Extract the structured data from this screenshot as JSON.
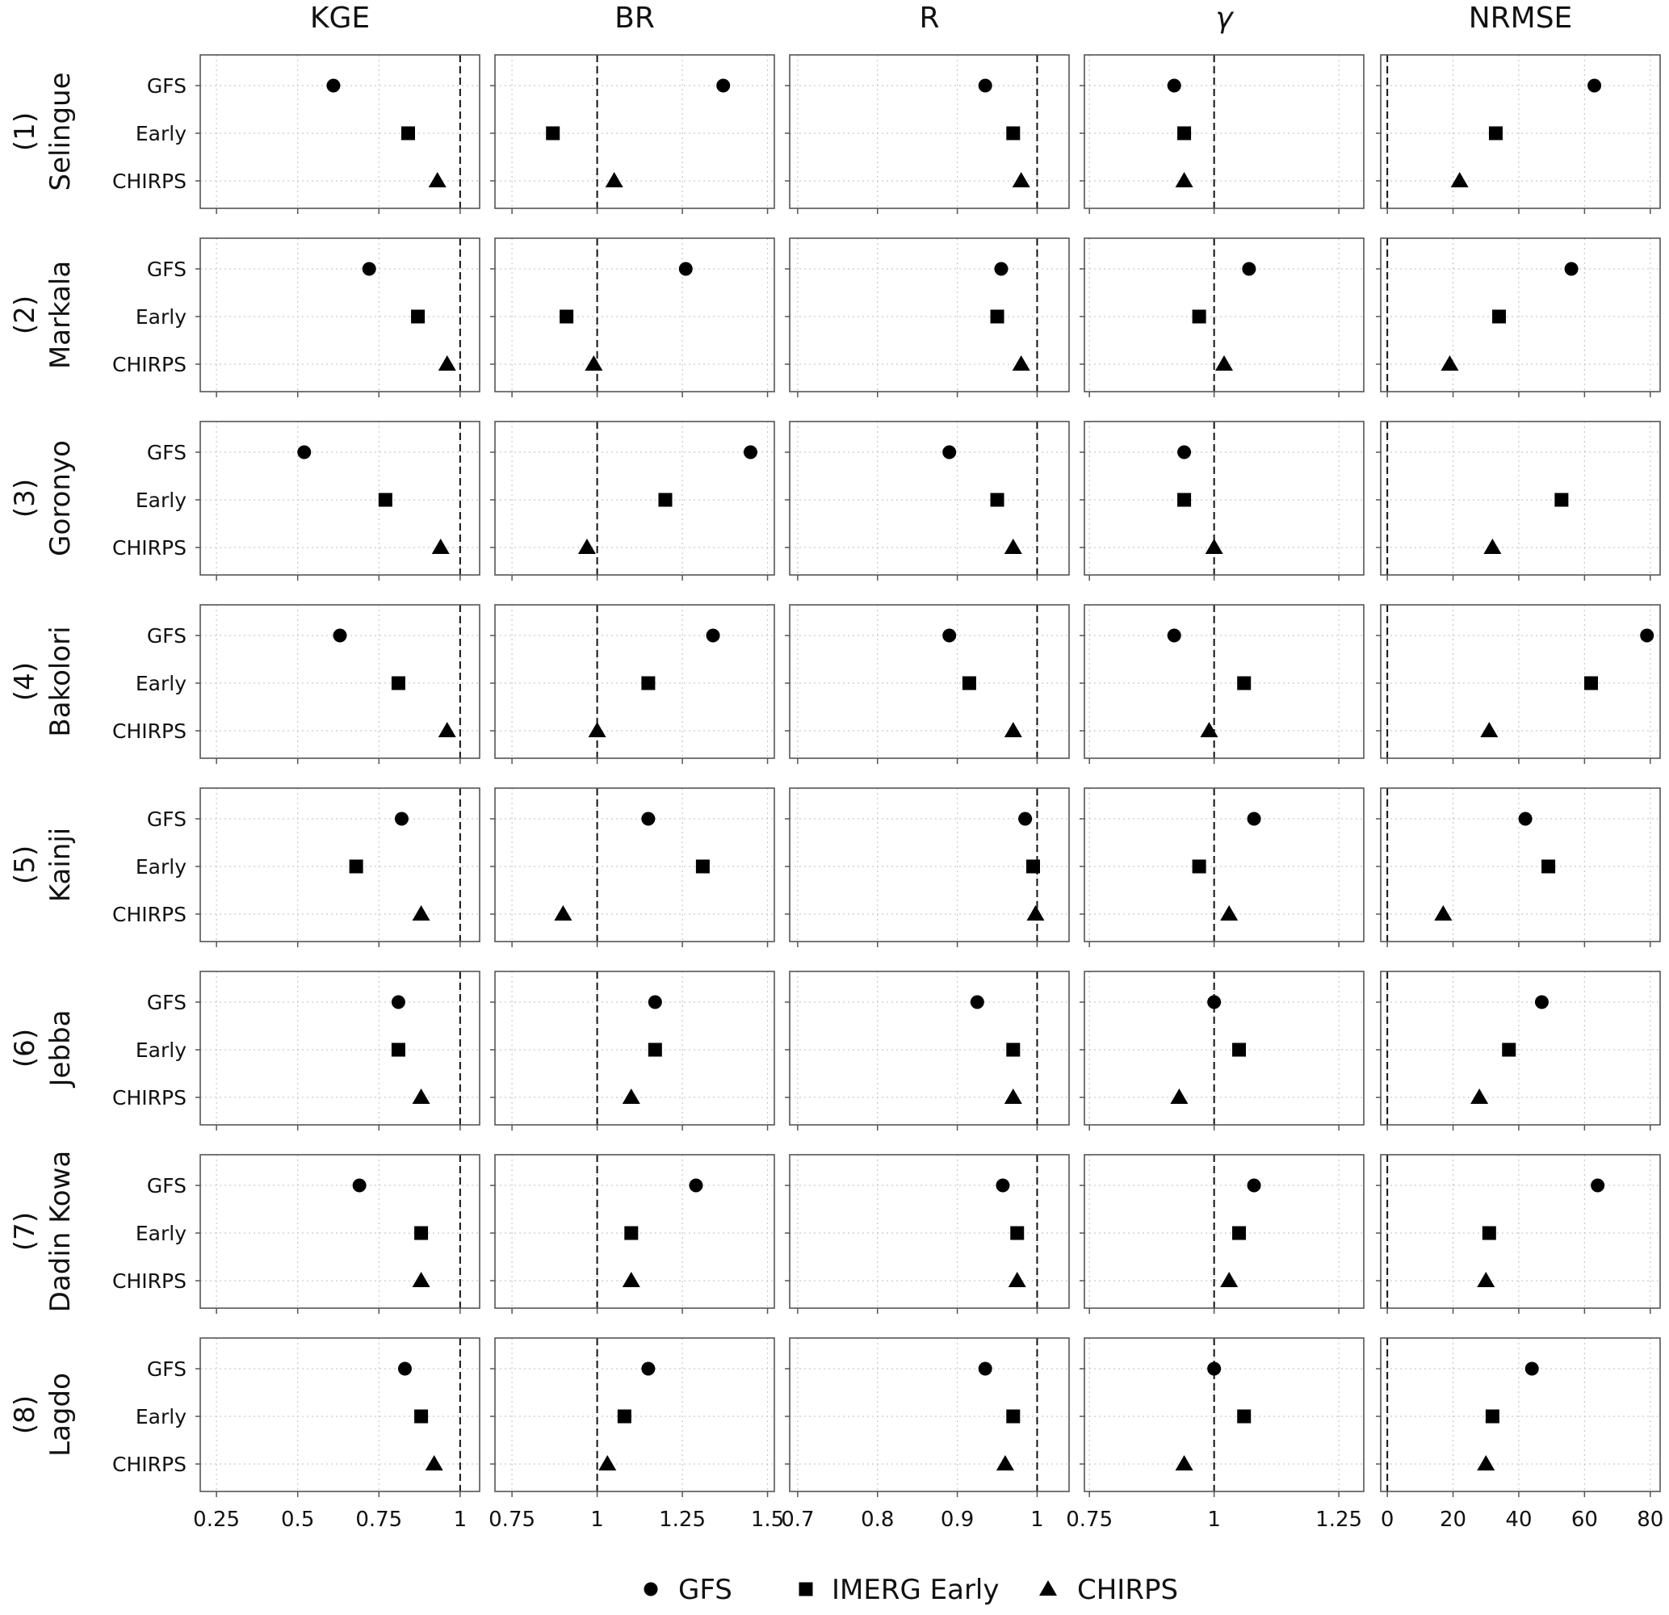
{
  "chart_data": {
    "type": "scatter",
    "categories": [
      "GFS",
      "Early",
      "CHIRPS"
    ],
    "series": [
      {
        "name": "GFS",
        "marker": "circle"
      },
      {
        "name": "IMERG Early",
        "marker": "square"
      },
      {
        "name": "CHIRPS",
        "marker": "triangle"
      }
    ],
    "metrics": [
      {
        "label": "KGE",
        "italic": false,
        "xlim": [
          0.2,
          1.06
        ],
        "ticks": [
          0.25,
          0.5,
          0.75,
          1
        ],
        "tick_labels": [
          "0.25",
          "0.5",
          "0.75",
          "1"
        ],
        "reference": 1
      },
      {
        "label": "BR",
        "italic": false,
        "xlim": [
          0.7,
          1.52
        ],
        "ticks": [
          0.75,
          1,
          1.25,
          1.5
        ],
        "tick_labels": [
          "0.75",
          "1",
          "1.25",
          "1.5"
        ],
        "reference": 1
      },
      {
        "label": "R",
        "italic": false,
        "xlim": [
          0.69,
          1.04
        ],
        "ticks": [
          0.7,
          0.8,
          0.9,
          1
        ],
        "tick_labels": [
          "0.7",
          "0.8",
          "0.9",
          "1"
        ],
        "reference": 1
      },
      {
        "label": "γ",
        "italic": true,
        "xlim": [
          0.74,
          1.3
        ],
        "ticks": [
          0.75,
          1,
          1.25
        ],
        "tick_labels": [
          "0.75",
          "1",
          "1.25"
        ],
        "reference": 1
      },
      {
        "label": "NRMSE",
        "italic": false,
        "xlim": [
          -2,
          83
        ],
        "ticks": [
          0,
          20,
          40,
          60,
          80
        ],
        "tick_labels": [
          "0",
          "20",
          "40",
          "60",
          "80"
        ],
        "reference": 0
      }
    ],
    "reservoirs": [
      {
        "index": "(1)",
        "name": "Selingue",
        "values": [
          [
            0.61,
            0.84,
            0.93
          ],
          [
            1.37,
            0.87,
            1.05
          ],
          [
            0.935,
            0.97,
            0.98
          ],
          [
            0.92,
            0.94,
            0.94
          ],
          [
            63,
            33,
            22
          ]
        ]
      },
      {
        "index": "(2)",
        "name": "Markala",
        "values": [
          [
            0.72,
            0.87,
            0.96
          ],
          [
            1.26,
            0.91,
            0.99
          ],
          [
            0.955,
            0.95,
            0.98
          ],
          [
            1.07,
            0.97,
            1.02
          ],
          [
            56,
            34,
            19
          ]
        ]
      },
      {
        "index": "(3)",
        "name": "Goronyo",
        "values": [
          [
            0.52,
            0.77,
            0.94
          ],
          [
            1.45,
            1.2,
            0.97
          ],
          [
            0.89,
            0.95,
            0.97
          ],
          [
            0.94,
            0.94,
            1.0
          ],
          [
            null,
            53,
            32
          ]
        ]
      },
      {
        "index": "(4)",
        "name": "Bakolori",
        "values": [
          [
            0.63,
            0.81,
            0.96
          ],
          [
            1.34,
            1.15,
            1.0
          ],
          [
            0.89,
            0.915,
            0.97
          ],
          [
            0.92,
            1.06,
            0.99
          ],
          [
            79,
            62,
            31
          ]
        ]
      },
      {
        "index": "(5)",
        "name": "Kainji",
        "values": [
          [
            0.82,
            0.68,
            0.88
          ],
          [
            1.15,
            1.31,
            0.9
          ],
          [
            0.985,
            0.995,
            0.998
          ],
          [
            1.08,
            0.97,
            1.03
          ],
          [
            42,
            49,
            17
          ]
        ]
      },
      {
        "index": "(6)",
        "name": "Jebba",
        "values": [
          [
            0.81,
            0.81,
            0.88
          ],
          [
            1.17,
            1.17,
            1.1
          ],
          [
            0.925,
            0.97,
            0.97
          ],
          [
            1.0,
            1.05,
            0.93
          ],
          [
            47,
            37,
            28
          ]
        ]
      },
      {
        "index": "(7)",
        "name": "Dadin Kowa",
        "values": [
          [
            0.69,
            0.88,
            0.88
          ],
          [
            1.29,
            1.1,
            1.1
          ],
          [
            0.957,
            0.975,
            0.975
          ],
          [
            1.08,
            1.05,
            1.03
          ],
          [
            64,
            31,
            30
          ]
        ]
      },
      {
        "index": "(8)",
        "name": "Lagdo",
        "values": [
          [
            0.83,
            0.88,
            0.92
          ],
          [
            1.15,
            1.08,
            1.03
          ],
          [
            0.935,
            0.97,
            0.96
          ],
          [
            1.0,
            1.06,
            0.94
          ],
          [
            44,
            32,
            30
          ]
        ]
      }
    ],
    "legend": {
      "position": "bottom",
      "entries": [
        "GFS",
        "IMERG Early",
        "CHIRPS"
      ]
    },
    "grid": true
  }
}
